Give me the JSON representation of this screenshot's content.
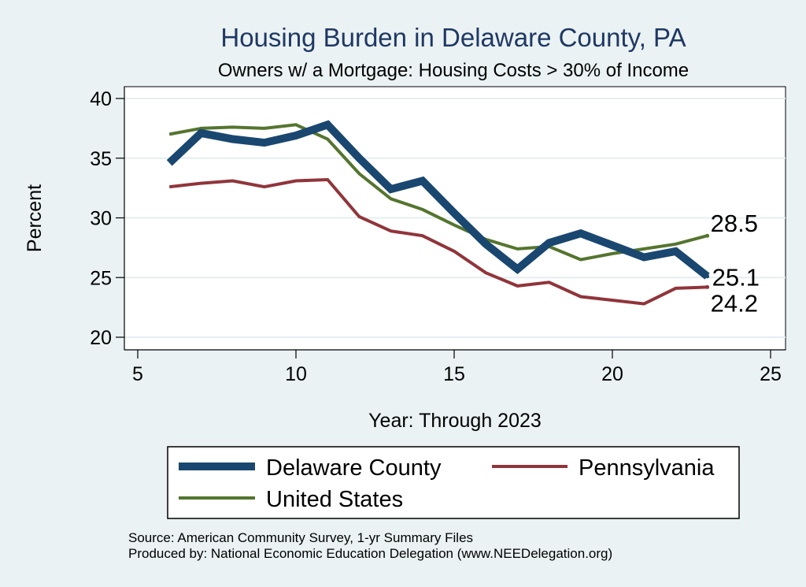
{
  "chart_data": {
    "type": "line",
    "title": "Housing Burden in Delaware County, PA",
    "subtitle": "Owners w/ a Mortgage: Housing Costs > 30% of Income",
    "xlabel": "Year: Through 2023",
    "ylabel": "Percent",
    "xlim": [
      5,
      25
    ],
    "ylim": [
      19.5,
      41
    ],
    "xticks": [
      5,
      10,
      15,
      20,
      25
    ],
    "yticks": [
      20,
      25,
      30,
      35,
      40
    ],
    "grid": true,
    "series": [
      {
        "name": "Delaware County",
        "color": "#1a476f",
        "x": [
          6,
          7,
          8,
          9,
          10,
          11,
          12,
          13,
          14,
          15,
          16,
          17,
          18,
          19,
          20,
          21,
          22,
          23
        ],
        "values": [
          34.6,
          37.1,
          36.6,
          36.3,
          36.9,
          37.8,
          35.0,
          32.4,
          33.1,
          30.4,
          27.8,
          25.7,
          27.9,
          28.7,
          27.7,
          26.7,
          27.2,
          25.1
        ],
        "end_label": "25.1"
      },
      {
        "name": "Pennsylvania",
        "color": "#90353b",
        "x": [
          6,
          7,
          8,
          9,
          10,
          11,
          12,
          13,
          14,
          15,
          16,
          17,
          18,
          19,
          20,
          21,
          22,
          23
        ],
        "values": [
          32.6,
          32.9,
          33.1,
          32.6,
          33.1,
          33.2,
          30.1,
          28.9,
          28.5,
          27.2,
          25.4,
          24.3,
          24.6,
          23.4,
          23.1,
          22.8,
          24.1,
          24.2
        ],
        "end_label": "24.2"
      },
      {
        "name": "United States",
        "color": "#55752f",
        "x": [
          6,
          7,
          8,
          9,
          10,
          11,
          12,
          13,
          14,
          15,
          16,
          17,
          18,
          19,
          20,
          21,
          22,
          23
        ],
        "values": [
          37.0,
          37.5,
          37.6,
          37.5,
          37.8,
          36.6,
          33.7,
          31.6,
          30.7,
          29.4,
          28.2,
          27.4,
          27.6,
          26.5,
          27.0,
          27.4,
          27.8,
          28.5
        ],
        "end_label": "28.5"
      }
    ],
    "legend": {
      "placement": "bottom",
      "order": [
        "Delaware County",
        "Pennsylvania",
        "United States"
      ]
    },
    "notes": [
      "Source: American Community Survey, 1-yr Summary Files",
      "Produced by: National Economic Education Delegation (www.NEEDelegation.org)"
    ]
  }
}
